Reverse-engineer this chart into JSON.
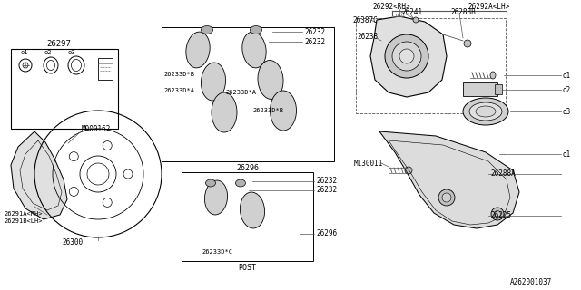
{
  "bg_color": "#ffffff",
  "border_color": "#000000",
  "line_color": "#555555",
  "text_color": "#000000",
  "fig_id": "A262001037",
  "label_26297": "26297",
  "label_26300": "26300",
  "label_rh_shield": "26291A<RH>",
  "label_lh_shield": "26291B<LH>",
  "label_m000162": "M000162",
  "label_26296_top": "26296",
  "label_26296_bot": "26296",
  "label_post": "POST",
  "label_rh_caliper": "26292<RH>",
  "label_lh_caliper": "26292A<LH>",
  "label_26387c": "26387C",
  "label_26241": "26241",
  "label_26288b": "26288B",
  "label_26238": "26238",
  "label_26288a": "26288A",
  "label_26225": "26225",
  "label_m130011": "M130011",
  "label_26232": "26232",
  "label_26233db": "26233D*B",
  "label_26233da": "26233D*A",
  "label_26233dc": "26233D*C"
}
